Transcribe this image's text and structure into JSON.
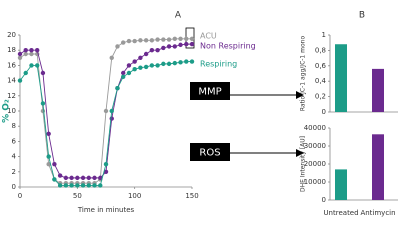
{
  "chart_data": [
    {
      "type": "line",
      "panel_label": "A",
      "xlabel": "Time in minutes",
      "ylabel": "% O₂",
      "x": [
        0,
        5,
        10,
        15,
        20,
        25,
        30,
        35,
        40,
        45,
        50,
        55,
        60,
        65,
        70,
        75,
        80,
        85,
        90,
        95,
        100,
        105,
        110,
        115,
        120,
        125,
        130,
        135,
        140,
        145,
        150
      ],
      "xlim": [
        0,
        150
      ],
      "xticks": [
        0,
        50,
        100,
        150
      ],
      "ylim": [
        0,
        20
      ],
      "yticks": [
        0,
        2,
        4,
        6,
        8,
        10,
        12,
        14,
        16,
        18,
        20
      ],
      "series": [
        {
          "name": "ACU",
          "color": "#9a9a9a",
          "values": [
            17,
            17.5,
            17.5,
            17.5,
            10,
            3,
            1,
            0.5,
            0.5,
            0.5,
            0.5,
            0.5,
            0.5,
            0.5,
            1,
            10,
            17,
            18.5,
            19,
            19.2,
            19.2,
            19.3,
            19.3,
            19.3,
            19.4,
            19.4,
            19.4,
            19.5,
            19.5,
            19.5,
            19.5
          ]
        },
        {
          "name": "Non Respiring",
          "color": "#6b2a8f",
          "values": [
            17.5,
            18,
            18,
            18,
            15,
            7,
            3,
            1.5,
            1.2,
            1.2,
            1.2,
            1.2,
            1.2,
            1.2,
            1.2,
            2,
            9,
            13,
            15,
            16,
            16.5,
            17,
            17.5,
            18,
            18,
            18.3,
            18.5,
            18.5,
            18.7,
            18.8,
            18.8
          ]
        },
        {
          "name": "Respiring",
          "color": "#1c9c88",
          "values": [
            14,
            15,
            16,
            16,
            11,
            4,
            1,
            0.2,
            0.2,
            0.2,
            0.2,
            0.2,
            0.2,
            0.2,
            0.2,
            3,
            10,
            13,
            14.5,
            15,
            15.5,
            15.7,
            15.8,
            16,
            16,
            16.2,
            16.2,
            16.3,
            16.4,
            16.5,
            16.5
          ]
        }
      ],
      "annotations": [
        "MMP",
        "ROS"
      ]
    },
    {
      "type": "bar",
      "panel_label": "B",
      "ylabel": "Ratio JC-1 agg/JC-1 mono",
      "categories": [
        null,
        null
      ],
      "values": [
        0.88,
        0.56
      ],
      "colors": [
        "#1c9c88",
        "#6b2a8f"
      ],
      "ylim": [
        0,
        1
      ],
      "yticks": [
        0,
        {
          "value": 0.2,
          "label": "0,2"
        },
        {
          "value": 0.4,
          "label": "0,4"
        },
        {
          "value": 0.6,
          "label": "0,6"
        },
        {
          "value": 0.8,
          "label": "0,8"
        },
        1
      ]
    },
    {
      "type": "bar",
      "ylabel": "DHE Intensity [AU]",
      "categories": [
        "Untreated",
        "Antimycin"
      ],
      "values": [
        17000,
        36500
      ],
      "colors": [
        "#1c9c88",
        "#6b2a8f"
      ],
      "ylim": [
        0,
        40000
      ],
      "yticks": [
        0,
        10000,
        20000,
        30000,
        40000
      ]
    }
  ]
}
